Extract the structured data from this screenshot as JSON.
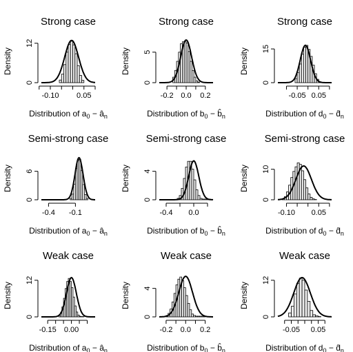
{
  "figure": {
    "background": "#ffffff",
    "bar_fill": "#ececec",
    "line_color": "#000000"
  },
  "chart_data": [
    {
      "type": "histogram",
      "title": "Strong case",
      "ylabel": "Density",
      "xlabel": {
        "prefix": "Distribution of ",
        "param": "a",
        "hat": "â",
        "sub": "0",
        "hsub": "n"
      },
      "xlim": [
        -0.14,
        0.1
      ],
      "ylim": [
        0,
        13
      ],
      "xticks": [
        -0.15,
        -0.1,
        -0.05,
        0.0,
        0.05,
        0.1
      ],
      "xtick_labels": [
        "",
        "-0.10",
        "",
        "",
        "0.05",
        ""
      ],
      "yticks": [
        0,
        12
      ],
      "bins": {
        "start": -0.06,
        "width": 0.01,
        "heights": [
          0.8,
          2.6,
          5.5,
          9.3,
          11.6,
          12.6,
          11.5,
          8.8,
          5.2,
          2.2,
          0.7
        ]
      },
      "density": {
        "mean": -0.005,
        "sd": 0.031,
        "scale": 1.0
      }
    },
    {
      "type": "histogram",
      "title": "Strong case",
      "ylabel": "Density",
      "xlabel": {
        "prefix": "Distribution of ",
        "param": "b",
        "hat": "b̂",
        "sub": "0",
        "hsub": "n"
      },
      "xlim": [
        -0.28,
        0.28
      ],
      "ylim": [
        0,
        7
      ],
      "xticks": [
        -0.2,
        -0.1,
        0.0,
        0.1,
        0.2
      ],
      "xtick_labels": [
        "-0.2",
        "",
        "0.0",
        "",
        "0.2"
      ],
      "yticks": [
        0,
        5
      ],
      "bins": {
        "start": -0.14,
        "width": 0.02,
        "heights": [
          0.9,
          2.0,
          3.5,
          5.0,
          6.4,
          6.7,
          6.7,
          6.5,
          5.1,
          3.5,
          2.0,
          0.9,
          0.3,
          0.1
        ]
      },
      "density": {
        "mean": 0.0,
        "sd": 0.057,
        "scale": 1.0
      }
    },
    {
      "type": "histogram",
      "title": "Strong case",
      "ylabel": "Density",
      "xlabel": {
        "prefix": "Distribution of ",
        "param": "d",
        "hat": "d̂",
        "sub": "0",
        "hsub": "n"
      },
      "xlim": [
        -0.14,
        0.11
      ],
      "ylim": [
        0,
        19
      ],
      "xticks": [
        -0.1,
        -0.05,
        0.0,
        0.05,
        0.1
      ],
      "xtick_labels": [
        "",
        "-0.05",
        "",
        "0.05",
        ""
      ],
      "yticks": [
        0,
        15
      ],
      "bins": {
        "start": -0.06,
        "width": 0.01,
        "heights": [
          1.8,
          4.5,
          8.3,
          12.7,
          15.8,
          16.6,
          14.8,
          11.7,
          7.8,
          4.0,
          1.5,
          0.4
        ]
      },
      "density": {
        "mean": -0.012,
        "sd": 0.024,
        "scale": 1.0
      }
    },
    {
      "type": "histogram",
      "title": "Semi-strong case",
      "ylabel": "Density",
      "xlabel": {
        "prefix": "Distribution of ",
        "param": "a",
        "hat": "â",
        "sub": "0",
        "hsub": "n"
      },
      "xlim": [
        -0.48,
        0.12
      ],
      "ylim": [
        0,
        9
      ],
      "xticks": [
        -0.4,
        -0.1
      ],
      "xtick_labels": [
        "-0.4",
        "-0.1"
      ],
      "yticks": [
        0,
        6
      ],
      "bins": {
        "start": -0.16,
        "width": 0.02,
        "heights": [
          0.3,
          1.2,
          3.3,
          6.6,
          8.4,
          8.5,
          6.2,
          3.2,
          1.1,
          0.3
        ]
      },
      "density": {
        "mean": -0.06,
        "sd": 0.045,
        "scale": 1.0
      }
    },
    {
      "type": "histogram",
      "title": "Semi-strong case",
      "ylabel": "Density",
      "xlabel": {
        "prefix": "Distribution of ",
        "param": "b",
        "hat": "b̂",
        "sub": "0",
        "hsub": "n"
      },
      "xlim": [
        -0.5,
        0.28
      ],
      "ylim": [
        0,
        6
      ],
      "xticks": [
        -0.4,
        -0.2,
        0.0,
        0.2
      ],
      "xtick_labels": [
        "-0.4",
        "",
        "0.0",
        ""
      ],
      "yticks": [
        0,
        4
      ],
      "bins": {
        "start": -0.24,
        "width": 0.03,
        "heights": [
          0.2,
          0.6,
          1.6,
          3.0,
          4.6,
          5.4,
          5.4,
          4.3,
          2.8,
          1.4,
          0.6,
          0.2,
          0.1,
          0.1,
          0.1,
          0.1
        ]
      },
      "density": {
        "mean": 0.0,
        "sd": 0.073,
        "scale": 1.0
      }
    },
    {
      "type": "histogram",
      "title": "Semi-strong case",
      "ylabel": "Density",
      "xlabel": {
        "prefix": "Distribution of ",
        "param": "d",
        "hat": "d̂",
        "sub": "0",
        "hsub": "n"
      },
      "xlim": [
        -0.14,
        0.11
      ],
      "ylim": [
        0,
        14
      ],
      "xticks": [
        -0.1,
        -0.05,
        0.0,
        0.05,
        0.1
      ],
      "xtick_labels": [
        "-0.10",
        "",
        "",
        "0.05",
        ""
      ],
      "yticks": [
        0,
        10
      ],
      "bins": {
        "start": -0.12,
        "width": 0.01,
        "heights": [
          0.3,
          1.0,
          2.6,
          4.8,
          7.3,
          9.3,
          10.8,
          12.1,
          11.6,
          9.5,
          6.6,
          3.9,
          1.9,
          0.8,
          0.3,
          0.1
        ]
      },
      "density": {
        "mean": -0.02,
        "sd": 0.036,
        "scale": 1.0
      }
    },
    {
      "type": "histogram",
      "title": "Weak case",
      "ylabel": "Density",
      "xlabel": {
        "prefix": "Distribution of ",
        "param": "a",
        "hat": "â",
        "sub": "0",
        "hsub": "n"
      },
      "xlim": [
        -0.19,
        0.15
      ],
      "ylim": [
        0,
        14
      ],
      "xticks": [
        -0.15,
        -0.1,
        -0.05,
        0.0,
        0.05,
        0.1
      ],
      "xtick_labels": [
        "-0.15",
        "",
        "",
        "0.00",
        "",
        ""
      ],
      "yticks": [
        0,
        12
      ],
      "bins": {
        "start": -0.08,
        "width": 0.01,
        "heights": [
          0.5,
          1.4,
          3.3,
          6.1,
          9.3,
          11.6,
          12.6,
          11.6,
          9.6,
          6.5,
          3.6,
          1.6,
          0.6,
          0.2,
          0.1,
          0.1
        ]
      },
      "density": {
        "mean": 0.0,
        "sd": 0.031,
        "scale": 1.0
      }
    },
    {
      "type": "histogram",
      "title": "Weak case",
      "ylabel": "Density",
      "xlabel": {
        "prefix": "Distribution of ",
        "param": "b",
        "hat": "b̂",
        "sub": "0",
        "hsub": "n"
      },
      "xlim": [
        -0.27,
        0.28
      ],
      "ylim": [
        0,
        6
      ],
      "xticks": [
        -0.2,
        -0.1,
        0.0,
        0.1,
        0.2
      ],
      "xtick_labels": [
        "-0.2",
        "",
        "0.0",
        "",
        "0.2"
      ],
      "yticks": [
        0,
        4
      ],
      "bins": {
        "start": -0.2,
        "width": 0.02,
        "heights": [
          0.2,
          0.5,
          1.1,
          2.1,
          3.3,
          4.5,
          5.3,
          5.6,
          5.1,
          4.1,
          3.0,
          1.9,
          1.0,
          0.4,
          0.2,
          0.1,
          0.1,
          0.1,
          0.1,
          0.1
        ]
      },
      "density": {
        "mean": 0.0,
        "sd": 0.07,
        "scale": 1.0
      }
    },
    {
      "type": "histogram",
      "title": "Weak case",
      "ylabel": "Density",
      "xlabel": {
        "prefix": "Distribution of ",
        "param": "d",
        "hat": "d̂",
        "sub": "0",
        "hsub": "n"
      },
      "xlim": [
        -0.1,
        0.1
      ],
      "ylim": [
        0,
        14
      ],
      "xticks": [
        -0.075,
        -0.05,
        -0.025,
        0.0,
        0.025,
        0.05,
        0.075
      ],
      "xtick_labels": [
        "",
        "-0.05",
        "",
        "",
        "",
        "0.05",
        ""
      ],
      "yticks": [
        0,
        12
      ],
      "bins": {
        "start": -0.06,
        "width": 0.01,
        "heights": [
          1.3,
          3.5,
          7.5,
          11.0,
          12.7,
          12.0,
          8.8,
          5.1,
          2.1,
          0.7,
          0.3,
          0.1
        ]
      },
      "density": {
        "mean": -0.01,
        "sd": 0.031,
        "scale": 1.0
      }
    }
  ]
}
